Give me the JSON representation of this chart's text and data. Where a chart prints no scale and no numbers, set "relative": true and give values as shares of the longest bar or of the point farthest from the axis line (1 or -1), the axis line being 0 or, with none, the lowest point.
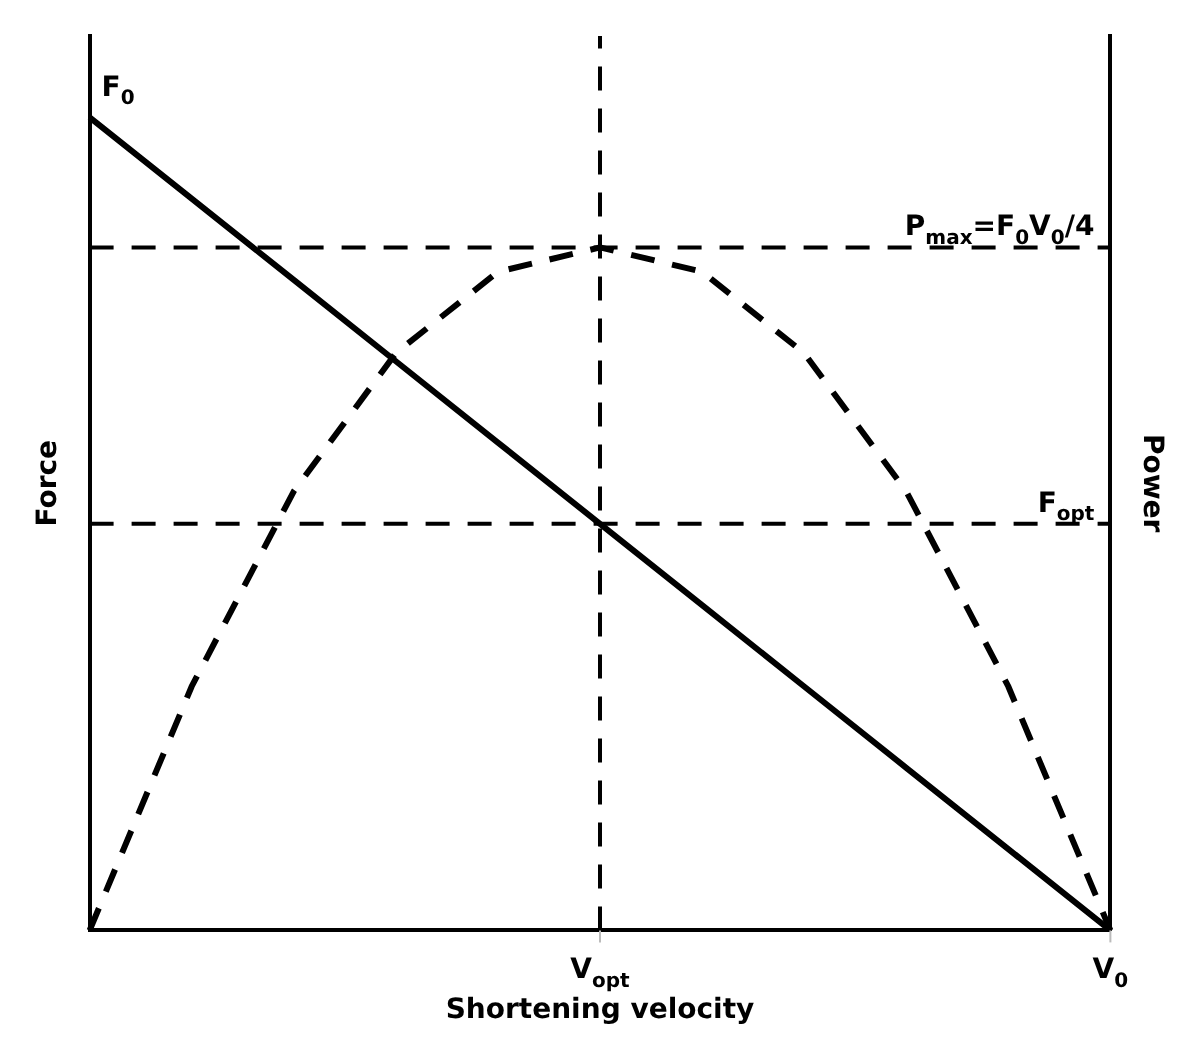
{
  "chart_data": {
    "type": "line",
    "relative": true,
    "xlabel": "Shortening velocity",
    "ylabel": "Force",
    "y2label": "Power",
    "categories": [
      null,
      null,
      null,
      null,
      null,
      "V$_{opt}$",
      null,
      null,
      null,
      null,
      "V$_{0}$"
    ],
    "marker": "none",
    "series": [
      {
        "color": "#000000",
        "line_style": "solid",
        "values": [
          1,
          0.9,
          0.8,
          0.7,
          0.6,
          0.5,
          0.4,
          0.3,
          0.2,
          0.1,
          0
        ]
      },
      {
        "color": "#000000",
        "line_style": "dashed",
        "values": [
          0,
          0.3,
          0.54,
          0.71,
          0.81,
          0.84,
          0.81,
          0.71,
          0.54,
          0.3,
          0
        ]
      }
    ],
    "ref_lines": [
      {
        "axis": "y",
        "value": 0.5,
        "label": "F$_{opt}$",
        "line_style": "dashed"
      },
      {
        "axis": "x",
        "value": "V$_{opt}$",
        "line_style": "dashed"
      },
      {
        "axis": "y",
        "value": 0.84,
        "label": "P$_{max}$=F$_{0}$V$_{0}$/4",
        "line_style": "dashed"
      }
    ],
    "annotations": [
      "F$_{0}$"
    ]
  }
}
